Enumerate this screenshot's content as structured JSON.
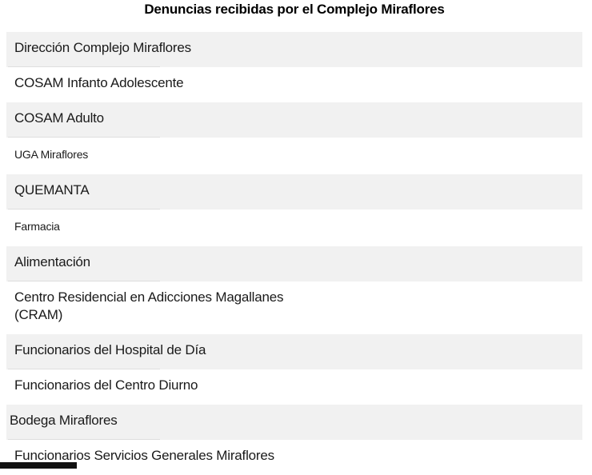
{
  "title": "Denuncias recibidas por el Complejo Miraflores",
  "rows": [
    {
      "label": "Dirección Complejo Miraflores",
      "size": "large",
      "striped": true,
      "flush": false
    },
    {
      "label": "COSAM Infanto Adolescente",
      "size": "large",
      "striped": false,
      "flush": false
    },
    {
      "label": "COSAM Adulto",
      "size": "large",
      "striped": true,
      "flush": false
    },
    {
      "label": "UGA Miraflores",
      "size": "small",
      "striped": false,
      "flush": false
    },
    {
      "label": "QUEMANTA",
      "size": "large",
      "striped": true,
      "flush": false
    },
    {
      "label": "Farmacia",
      "size": "small",
      "striped": false,
      "flush": false
    },
    {
      "label": "Alimentación",
      "size": "large",
      "striped": true,
      "flush": false
    },
    {
      "label": "Centro Residencial en Adicciones Magallanes\n(CRAM)",
      "size": "large",
      "striped": false,
      "flush": false
    },
    {
      "label": "Funcionarios del Hospital de Día",
      "size": "large",
      "striped": true,
      "flush": false
    },
    {
      "label": "Funcionarios del Centro Diurno",
      "size": "large",
      "striped": false,
      "flush": false
    },
    {
      "label": "Bodega Miraflores",
      "size": "large",
      "striped": true,
      "flush": true
    },
    {
      "label": "Funcionarios Servicios Generales Miraflores",
      "size": "large",
      "striped": false,
      "flush": false
    }
  ],
  "colors": {
    "title": "#000000",
    "text": "#1a1a1a",
    "stripe": "#f1f1f1",
    "divider": "#dedede",
    "background": "#ffffff",
    "fragment": "#111111"
  }
}
